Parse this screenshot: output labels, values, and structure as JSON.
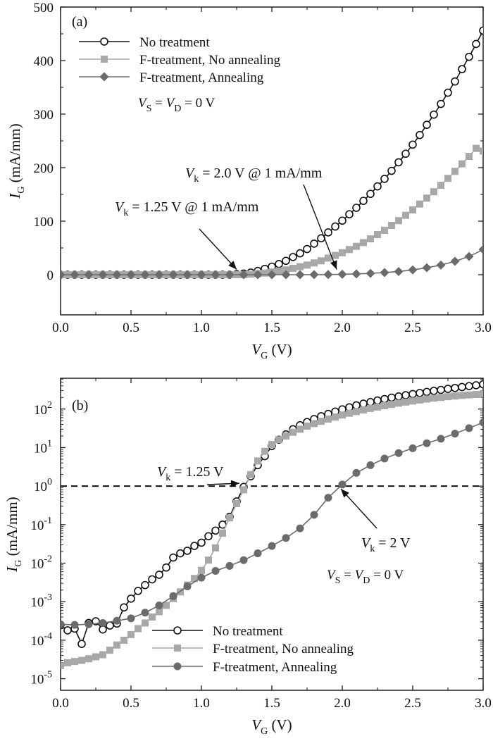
{
  "colors": {
    "none": "#111111",
    "noanneal": "#a8a8a8",
    "anneal": "#6b6b6b"
  },
  "chart_data": [
    {
      "panel": "(a)",
      "type": "line",
      "xlabel": {
        "main": "V",
        "sub": "G",
        "unit": " (V)"
      },
      "ylabel": {
        "main": "I",
        "sub": "G",
        "unit": " (mA/mm)"
      },
      "xlim": [
        0,
        3
      ],
      "ylim": [
        -75,
        500
      ],
      "yscale": "linear",
      "xticks": [
        0,
        0.5,
        1.0,
        1.5,
        2.0,
        2.5,
        3.0
      ],
      "xtick_labels": [
        "0.0",
        "0.5",
        "1.0",
        "1.5",
        "2.0",
        "2.5",
        "3.0"
      ],
      "yticks": [
        0,
        100,
        200,
        300,
        400,
        500
      ],
      "ytick_labels": [
        "0",
        "100",
        "200",
        "300",
        "400",
        "500"
      ],
      "legend": {
        "position": "top-left",
        "entries": [
          "No treatment",
          "F-treatment, No annealing",
          "F-treatment, Annealing"
        ],
        "condition": {
          "a": "V",
          "a_sub": "S",
          "b": " = ",
          "c": "V",
          "c_sub": "D",
          "d": " = 0 V"
        }
      },
      "annotations": [
        {
          "main": "V",
          "sub": "k",
          "rest": " = 2.0 V @ 1 mA/mm",
          "target": [
            1.96,
            2
          ]
        },
        {
          "main": "V",
          "sub": "k",
          "rest": " = 1.25 V @ 1 mA/mm",
          "target": [
            1.25,
            2
          ]
        }
      ],
      "series": [
        {
          "name": "No treatment",
          "marker": "circle-open",
          "color": "#111111",
          "x": [
            0.0,
            0.05,
            0.1,
            0.15,
            0.2,
            0.25,
            0.3,
            0.35,
            0.4,
            0.45,
            0.5,
            0.55,
            0.6,
            0.65,
            0.7,
            0.75,
            0.8,
            0.85,
            0.9,
            0.95,
            1.0,
            1.05,
            1.1,
            1.15,
            1.2,
            1.25,
            1.3,
            1.35,
            1.4,
            1.45,
            1.5,
            1.55,
            1.6,
            1.65,
            1.7,
            1.75,
            1.8,
            1.85,
            1.9,
            1.95,
            2.0,
            2.05,
            2.1,
            2.15,
            2.2,
            2.25,
            2.3,
            2.35,
            2.4,
            2.45,
            2.5,
            2.55,
            2.6,
            2.65,
            2.7,
            2.75,
            2.8,
            2.85,
            2.9,
            2.95,
            3.0
          ],
          "y": [
            0,
            0,
            0,
            0,
            0,
            0,
            0,
            0,
            0,
            0,
            0,
            0,
            0,
            0,
            0,
            0,
            0,
            0,
            0,
            0,
            0,
            0,
            0,
            0,
            0,
            1,
            2,
            4,
            7,
            11,
            15,
            20,
            26,
            33,
            40,
            48,
            58,
            68,
            79,
            90,
            101,
            113,
            125,
            138,
            151,
            165,
            179,
            194,
            210,
            226,
            243,
            261,
            280,
            299,
            319,
            340,
            361,
            384,
            407,
            431,
            456
          ]
        },
        {
          "name": "F-treatment, No annealing",
          "marker": "square",
          "color": "#a8a8a8",
          "x": [
            0.0,
            0.05,
            0.1,
            0.15,
            0.2,
            0.25,
            0.3,
            0.35,
            0.4,
            0.45,
            0.5,
            0.55,
            0.6,
            0.65,
            0.7,
            0.75,
            0.8,
            0.85,
            0.9,
            0.95,
            1.0,
            1.05,
            1.1,
            1.15,
            1.2,
            1.25,
            1.3,
            1.35,
            1.4,
            1.45,
            1.5,
            1.55,
            1.6,
            1.65,
            1.7,
            1.75,
            1.8,
            1.85,
            1.9,
            1.95,
            2.0,
            2.05,
            2.1,
            2.15,
            2.2,
            2.25,
            2.3,
            2.35,
            2.4,
            2.45,
            2.5,
            2.55,
            2.6,
            2.65,
            2.7,
            2.75,
            2.8,
            2.85,
            2.9,
            2.95,
            3.0
          ],
          "y": [
            0,
            0,
            0,
            0,
            0,
            0,
            0,
            0,
            0,
            0,
            0,
            0,
            0,
            0,
            0,
            0,
            0,
            0,
            0,
            0,
            0,
            0,
            0,
            0,
            0,
            0,
            0,
            1,
            2,
            3,
            5,
            7,
            9,
            12,
            15,
            18,
            22,
            26,
            31,
            36,
            41,
            47,
            53,
            60,
            67,
            75,
            83,
            92,
            101,
            111,
            121,
            132,
            143,
            155,
            167,
            180,
            193,
            207,
            221,
            236,
            231
          ]
        },
        {
          "name": "F-treatment, Annealing",
          "marker": "diamond",
          "color": "#6b6b6b",
          "x": [
            0.0,
            0.1,
            0.2,
            0.3,
            0.4,
            0.5,
            0.6,
            0.7,
            0.8,
            0.9,
            1.0,
            1.1,
            1.2,
            1.3,
            1.4,
            1.5,
            1.6,
            1.7,
            1.8,
            1.9,
            2.0,
            2.1,
            2.2,
            2.3,
            2.4,
            2.5,
            2.6,
            2.7,
            2.8,
            2.9,
            3.0
          ],
          "y": [
            0,
            0,
            0,
            0,
            0,
            0,
            0,
            0,
            0,
            0,
            0,
            0,
            0,
            0,
            0,
            0,
            0,
            0,
            0.1,
            0.3,
            0.8,
            1.5,
            2.5,
            4,
            6,
            9,
            13,
            18,
            25,
            34,
            47
          ]
        }
      ]
    },
    {
      "panel": "(b)",
      "type": "line",
      "xlabel": {
        "main": "V",
        "sub": "G",
        "unit": " (V)"
      },
      "ylabel": {
        "main": "I",
        "sub": "G",
        "unit": " (mA/mm)"
      },
      "xlim": [
        0,
        3
      ],
      "ylim_log10": [
        -5.3,
        2.8
      ],
      "yscale": "log",
      "xticks": [
        0,
        0.5,
        1.0,
        1.5,
        2.0,
        2.5,
        3.0
      ],
      "xtick_labels": [
        "0.0",
        "0.5",
        "1.0",
        "1.5",
        "2.0",
        "2.5",
        "3.0"
      ],
      "ytick_exponents": [
        -5,
        -4,
        -3,
        -2,
        -1,
        0,
        1,
        2
      ],
      "ytick_base": "10",
      "reference_line": {
        "y": 1,
        "style": "dashed"
      },
      "legend": {
        "position": "bottom-center",
        "entries": [
          "No treatment",
          "F-treatment, No annealing",
          "F-treatment, Annealing"
        ],
        "condition": {
          "a": "V",
          "a_sub": "S",
          "b": " = ",
          "c": "V",
          "c_sub": "D",
          "d": " = 0 V"
        }
      },
      "annotations": [
        {
          "main": "V",
          "sub": "k",
          "rest": " = 1.25 V",
          "target": [
            1.25,
            1
          ]
        },
        {
          "main": "V",
          "sub": "k",
          "rest": " = 2 V",
          "target": [
            1.97,
            1
          ]
        }
      ],
      "series": [
        {
          "name": "No treatment",
          "marker": "circle-open",
          "color": "#111111",
          "x": [
            0.0,
            0.05,
            0.1,
            0.15,
            0.2,
            0.25,
            0.3,
            0.35,
            0.4,
            0.45,
            0.5,
            0.55,
            0.6,
            0.65,
            0.7,
            0.75,
            0.8,
            0.85,
            0.9,
            0.95,
            1.0,
            1.05,
            1.1,
            1.15,
            1.2,
            1.25,
            1.3,
            1.35,
            1.4,
            1.45,
            1.5,
            1.55,
            1.6,
            1.65,
            1.7,
            1.75,
            1.8,
            1.85,
            1.9,
            1.95,
            2.0,
            2.05,
            2.1,
            2.15,
            2.2,
            2.25,
            2.3,
            2.35,
            2.4,
            2.45,
            2.5,
            2.55,
            2.6,
            2.65,
            2.7,
            2.75,
            2.8,
            2.85,
            2.9,
            2.95,
            3.0
          ],
          "y": [
            0.00025,
            0.00018,
            0.0002,
            8e-05,
            0.00028,
            0.00031,
            0.00019,
            0.00024,
            0.00027,
            0.00071,
            0.0012,
            0.0019,
            0.0027,
            0.0038,
            0.005,
            0.0077,
            0.014,
            0.018,
            0.021,
            0.028,
            0.034,
            0.05,
            0.07,
            0.1,
            0.16,
            0.4,
            0.95,
            1.8,
            3.5,
            6,
            11,
            16,
            22,
            30,
            38,
            46,
            55,
            65,
            75,
            86,
            98,
            111,
            125,
            138,
            152,
            167,
            182,
            198,
            213,
            229,
            245,
            262,
            279,
            297,
            315,
            334,
            353,
            373,
            394,
            415,
            440
          ]
        },
        {
          "name": "F-treatment, No annealing",
          "marker": "square",
          "color": "#a8a8a8",
          "x": [
            0.0,
            0.05,
            0.1,
            0.15,
            0.2,
            0.25,
            0.3,
            0.35,
            0.4,
            0.45,
            0.5,
            0.55,
            0.6,
            0.65,
            0.7,
            0.75,
            0.8,
            0.85,
            0.9,
            0.95,
            1.0,
            1.05,
            1.1,
            1.15,
            1.2,
            1.25,
            1.3,
            1.35,
            1.4,
            1.45,
            1.5,
            1.55,
            1.6,
            1.65,
            1.7,
            1.75,
            1.8,
            1.85,
            1.9,
            1.95,
            2.0,
            2.05,
            2.1,
            2.15,
            2.2,
            2.25,
            2.3,
            2.35,
            2.4,
            2.45,
            2.5,
            2.55,
            2.6,
            2.65,
            2.7,
            2.75,
            2.8,
            2.85,
            2.9,
            2.95,
            3.0
          ],
          "y": [
            2.2e-05,
            2.6e-05,
            2.8e-05,
            3e-05,
            3.3e-05,
            3.7e-05,
            4.2e-05,
            5.5e-05,
            7.5e-05,
            0.0001,
            0.00014,
            0.0002,
            0.00028,
            0.0004,
            0.00055,
            0.0008,
            0.0012,
            0.0018,
            0.0027,
            0.004,
            0.0065,
            0.012,
            0.025,
            0.06,
            0.15,
            0.35,
            0.8,
            2.0,
            4.5,
            8,
            12,
            16,
            20,
            25,
            30,
            36,
            42,
            48,
            55,
            62,
            70,
            78,
            86,
            95,
            104,
            113,
            122,
            132,
            142,
            152,
            162,
            172,
            182,
            192,
            201,
            210,
            218,
            226,
            233,
            240,
            246
          ]
        },
        {
          "name": "F-treatment, Annealing",
          "marker": "circle-filled",
          "color": "#6b6b6b",
          "x": [
            0.0,
            0.1,
            0.2,
            0.3,
            0.4,
            0.5,
            0.6,
            0.7,
            0.8,
            0.9,
            1.0,
            1.1,
            1.2,
            1.3,
            1.4,
            1.5,
            1.6,
            1.7,
            1.8,
            1.9,
            2.0,
            2.1,
            2.2,
            2.3,
            2.4,
            2.5,
            2.6,
            2.7,
            2.8,
            2.9,
            3.0
          ],
          "y": [
            0.00026,
            0.00025,
            0.00026,
            0.00028,
            0.00032,
            0.00037,
            0.00052,
            0.0008,
            0.0014,
            0.0025,
            0.0042,
            0.0063,
            0.0085,
            0.012,
            0.018,
            0.028,
            0.045,
            0.08,
            0.18,
            0.5,
            1.1,
            2.2,
            3.5,
            5.2,
            7.2,
            9.6,
            13,
            17,
            23,
            32,
            45
          ]
        }
      ]
    }
  ]
}
